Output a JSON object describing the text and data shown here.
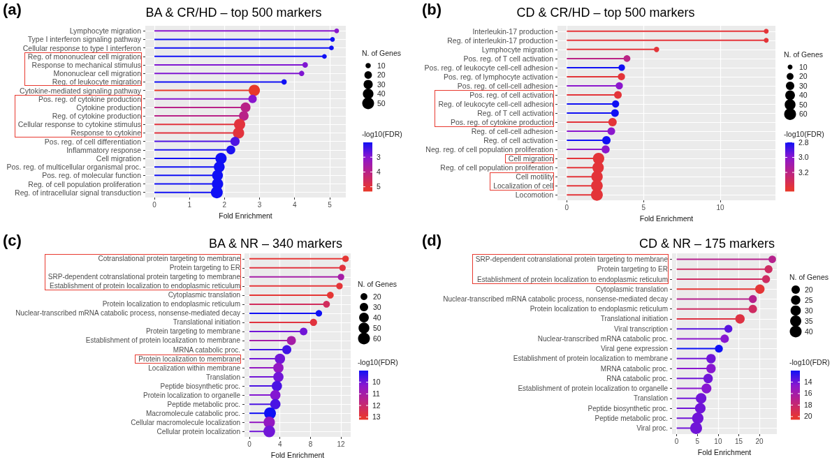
{
  "chart_data": [
    {
      "type": "lollipop",
      "orientation": "horizontal",
      "title": "BA & CR/HD – top 500 markers",
      "xlabel": "Fold Enrichment",
      "annotations": [
        "(a)"
      ],
      "grid": true,
      "legend_title": "N. of Genes",
      "clabel": "-log10(FDR)",
      "categories": [
        "Lymphocyte migration",
        "Type I interferon signaling pathway",
        "Cellular response to type I interferon",
        "Reg. of mononuclear cell migration",
        "Response to mechanical stimulus",
        "Mononuclear cell migration",
        "Reg. of leukocyte migration",
        "Cytokine-mediated signaling pathway",
        "Pos. reg. of cytokine production",
        "Cytokine production",
        "Reg. of cytokine production",
        "Cellular response to cytokine stimulus",
        "Response to cytokine",
        "Pos. reg. of cell differentiation",
        "Inflammatory response",
        "Cell migration",
        "Pos. reg. of multicellular organismal proc.",
        "Pos. reg. of molecular function",
        "Reg. of cell population proliferation",
        "Reg. of intracellular signal transduction"
      ],
      "values": [
        5.2,
        5.08,
        5.05,
        4.85,
        4.3,
        4.2,
        3.7,
        2.85,
        2.8,
        2.6,
        2.55,
        2.43,
        2.4,
        2.3,
        2.18,
        1.9,
        1.85,
        1.8,
        1.8,
        1.78
      ],
      "sizes": [
        8,
        8,
        8,
        8,
        11,
        10,
        10,
        45,
        25,
        35,
        33,
        45,
        45,
        30,
        28,
        45,
        42,
        42,
        45,
        50
      ],
      "size_legend": [
        10,
        20,
        30,
        40,
        50
      ],
      "cvalues": [
        3.0,
        2.0,
        2.0,
        2.0,
        2.9,
        2.9,
        2.0,
        5.3,
        3.0,
        4.0,
        4.0,
        5.0,
        5.0,
        2.5,
        2.1,
        2.0,
        2.0,
        2.0,
        2.0,
        2.0
      ],
      "clim": [
        2,
        5.3
      ],
      "cticks": [
        3,
        4,
        5
      ],
      "xlim": [
        -0.26,
        5.46
      ],
      "xticks": [
        0,
        1,
        2,
        3,
        4,
        5
      ]
    },
    {
      "type": "lollipop",
      "orientation": "horizontal",
      "title": "CD & CR/HD – top 500 markers",
      "xlabel": "Fold Enrichment",
      "annotations": [
        "(b)"
      ],
      "grid": true,
      "legend_title": "N. of Genes",
      "clabel": "-log10(FDR)",
      "categories": [
        "Interleukin-17 production",
        "Reg. of interleukin-17 production",
        "Lymphocyte migration",
        "Pos. reg. of T cell activation",
        "Pos. reg. of leukocyte cell-cell adhesion",
        "Pos. reg. of lymphocyte activation",
        "Pos. reg. of cell-cell adhesion",
        "Pos. reg. of cell activation",
        "Reg. of leukocyte cell-cell adhesion",
        "Reg. of T cell activation",
        "Pos. reg. of cytokine production",
        "Reg. of cell-cell adhesion",
        "Reg. of cell activation",
        "Neg. reg. of cell population proliferation",
        "Cell migration",
        "Reg. of cell population proliferation",
        "Cell motility",
        "Localization of cell",
        "Locomotion"
      ],
      "values": [
        13.0,
        13.0,
        5.85,
        3.92,
        3.58,
        3.56,
        3.42,
        3.33,
        3.18,
        3.14,
        2.98,
        2.9,
        2.58,
        2.53,
        2.07,
        2.04,
        1.97,
        1.96,
        1.96
      ],
      "sizes": [
        10,
        10,
        12,
        20,
        18,
        22,
        22,
        25,
        22,
        25,
        30,
        25,
        30,
        28,
        55,
        55,
        55,
        58,
        60
      ],
      "size_legend": [
        10,
        20,
        30,
        40,
        50,
        60
      ],
      "cvalues": [
        3.4,
        3.4,
        3.4,
        3.2,
        2.8,
        3.4,
        3.0,
        3.4,
        2.8,
        2.8,
        3.4,
        3.0,
        2.8,
        3.0,
        3.4,
        3.4,
        3.4,
        3.4,
        3.4
      ],
      "clim": [
        2.8,
        3.45
      ],
      "cticks": [
        2.8,
        {
          "value": 3,
          "label": "3.0"
        },
        3.2
      ],
      "xlim": [
        -0.61,
        13.6
      ],
      "xticks": [
        0,
        5,
        10
      ]
    },
    {
      "type": "lollipop",
      "orientation": "horizontal",
      "title": "BA & NR – 340 markers",
      "xlabel": "Fold Enrichment",
      "annotations": [
        "(c)"
      ],
      "grid": true,
      "legend_title": "N. of Genes",
      "clabel": "-log10(FDR)",
      "categories": [
        "Cotranslational protein targeting to membrane",
        "Protein targeting to ER",
        "SRP-dependent cotranslational protein targeting to membrane",
        "Establishment of protein localization to endoplasmic reticulum",
        "Cytoplasmic translation",
        "Protein localization to endoplasmic reticulum",
        "Nuclear-transcribed mRNA catabolic process, nonsense-mediated decay",
        "Translational initiation",
        "Protein targeting to membrane",
        "Establishment of protein localization to membrane",
        "MRNA catabolic proc.",
        "Protein localization to membrane",
        "Localization within membrane",
        "Translation",
        "Peptide biosynthetic proc.",
        "Protein localization to organelle",
        "Peptide metabolic proc.",
        "Macromolecule catabolic proc.",
        "Cellular macromolecule localization",
        "Cellular protein localization"
      ],
      "values": [
        12.6,
        12.2,
        12.0,
        11.8,
        10.6,
        10.1,
        9.1,
        8.4,
        7.1,
        5.5,
        4.9,
        4.0,
        3.8,
        3.8,
        3.6,
        3.4,
        3.4,
        2.7,
        2.6,
        2.6
      ],
      "sizes": [
        18,
        18,
        18,
        18,
        20,
        20,
        18,
        22,
        25,
        35,
        35,
        45,
        45,
        45,
        45,
        45,
        45,
        60,
        55,
        58
      ],
      "size_legend": [
        20,
        30,
        40,
        50,
        60
      ],
      "cvalues": [
        13,
        12.8,
        11,
        12.9,
        13,
        12.3,
        9,
        12.8,
        10,
        11,
        9.5,
        10,
        10.5,
        10,
        9.6,
        10.2,
        9.6,
        9,
        10.5,
        10
      ],
      "clim": [
        9,
        13.2
      ],
      "cticks": [
        10,
        11,
        12,
        13
      ],
      "xlim": [
        -0.64,
        13.27
      ],
      "xticks": [
        0,
        4,
        8,
        12
      ]
    },
    {
      "type": "lollipop",
      "orientation": "horizontal",
      "title": "CD & NR – 175 markers",
      "xlabel": "Fold Enrichment",
      "annotations": [
        "(d)"
      ],
      "grid": true,
      "legend_title": "N. of Genes",
      "clabel": "-log10(FDR)",
      "categories": [
        "SRP-dependent cotranslational protein targeting to membrane",
        "Protein targeting to ER",
        "Establishment of protein localization to endoplasmic reticulum",
        "Cytoplasmic translation",
        "Nuclear-transcribed mRNA catabolic process, nonsense-mediated decay",
        "Protein localization to endoplasmic reticulum",
        "Translational initiation",
        "Viral transcription",
        "Nuclear-transcribed mRNA catabolic proc.",
        "Viral gene expression",
        "Establishment of protein localization to membrane",
        "MRNA catabolic proc.",
        "RNA catabolic proc.",
        "Establishment of protein localization to organelle",
        "Translation",
        "Peptide biosynthetic proc.",
        "Peptide metabolic proc.",
        "Viral proc."
      ],
      "values": [
        23.1,
        22.2,
        21.6,
        20.1,
        18.4,
        18.4,
        15.3,
        12.5,
        11.6,
        10.2,
        8.3,
        8.3,
        7.6,
        7.2,
        5.9,
        5.7,
        5.1,
        4.7
      ],
      "sizes": [
        16,
        18,
        18,
        25,
        18,
        20,
        25,
        18,
        20,
        18,
        25,
        25,
        25,
        28,
        32,
        32,
        37,
        40
      ],
      "size_legend": [
        20,
        25,
        30,
        35,
        40
      ],
      "cvalues": [
        17,
        18.5,
        18.5,
        20,
        17,
        18.5,
        19.5,
        13.5,
        14.5,
        12,
        14,
        14.5,
        14,
        14.5,
        14,
        14,
        14,
        14
      ],
      "clim": [
        12,
        20.5
      ],
      "cticks": [
        14,
        16,
        18,
        20
      ],
      "xlim": [
        -1.12,
        24.2
      ],
      "xticks": [
        0,
        5,
        10,
        15,
        20
      ]
    }
  ]
}
